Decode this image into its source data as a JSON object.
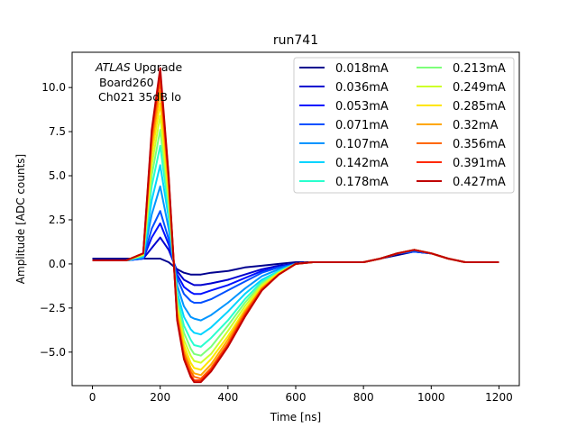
{
  "chart_data": {
    "type": "line",
    "title": "run741",
    "xlabel": "Time [ns]",
    "ylabel": "Amplitude [ADC counts]",
    "xlim": [
      -60,
      1260
    ],
    "ylim": [
      -6.9,
      12.0
    ],
    "x_ticks": [
      0,
      200,
      400,
      600,
      800,
      1000,
      1200
    ],
    "y_ticks": [
      -5.0,
      -2.5,
      0.0,
      2.5,
      5.0,
      7.5,
      10.0
    ],
    "x_tick_labels": [
      "0",
      "200",
      "400",
      "600",
      "800",
      "1000",
      "1200"
    ],
    "y_tick_labels": [
      "−5.0",
      "−2.5",
      "0.0",
      "2.5",
      "5.0",
      "7.5",
      "10.0"
    ],
    "grid": false,
    "legend_position": "top-right",
    "legend_columns": 2,
    "annotation": {
      "atlas": "ATLAS",
      "upgrade": " Upgrade",
      "line2": "Board260",
      "line3": "Ch021 35dB lo"
    },
    "x": [
      0,
      100,
      150,
      175,
      200,
      225,
      250,
      270,
      290,
      300,
      320,
      350,
      400,
      450,
      500,
      550,
      600,
      650,
      700,
      800,
      850,
      900,
      950,
      1000,
      1050,
      1100,
      1200
    ],
    "series": [
      {
        "name": "0.018mA",
        "color": "#00008f",
        "values": [
          0.3,
          0.3,
          0.3,
          0.3,
          0.3,
          0.1,
          -0.3,
          -0.5,
          -0.6,
          -0.6,
          -0.6,
          -0.5,
          -0.4,
          -0.2,
          -0.1,
          0.0,
          0.1,
          0.1,
          0.1,
          0.1,
          0.3,
          0.5,
          0.7,
          0.6,
          0.3,
          0.1,
          0.1
        ]
      },
      {
        "name": "0.036mA",
        "color": "#0000d0",
        "values": [
          0.2,
          0.2,
          0.3,
          0.9,
          1.5,
          0.8,
          -0.4,
          -0.9,
          -1.1,
          -1.2,
          -1.2,
          -1.1,
          -0.9,
          -0.6,
          -0.3,
          -0.1,
          0.0,
          0.1,
          0.1,
          0.1,
          0.3,
          0.6,
          0.7,
          0.6,
          0.3,
          0.1,
          0.1
        ]
      },
      {
        "name": "0.053mA",
        "color": "#0010ff",
        "values": [
          0.2,
          0.2,
          0.3,
          1.5,
          2.3,
          1.1,
          -0.6,
          -1.3,
          -1.6,
          -1.7,
          -1.7,
          -1.5,
          -1.2,
          -0.8,
          -0.4,
          -0.2,
          0.0,
          0.1,
          0.1,
          0.1,
          0.3,
          0.6,
          0.7,
          0.6,
          0.3,
          0.1,
          0.1
        ]
      },
      {
        "name": "0.071mA",
        "color": "#0050ff",
        "values": [
          0.2,
          0.2,
          0.3,
          2.0,
          3.0,
          1.4,
          -0.8,
          -1.7,
          -2.1,
          -2.2,
          -2.2,
          -2.0,
          -1.5,
          -1.0,
          -0.5,
          -0.2,
          0.0,
          0.1,
          0.1,
          0.1,
          0.3,
          0.6,
          0.7,
          0.6,
          0.3,
          0.1,
          0.1
        ]
      },
      {
        "name": "0.107mA",
        "color": "#0094ff",
        "values": [
          0.2,
          0.2,
          0.4,
          2.8,
          4.4,
          2.0,
          -1.2,
          -2.4,
          -3.0,
          -3.1,
          -3.2,
          -2.9,
          -2.2,
          -1.4,
          -0.7,
          -0.3,
          0.0,
          0.1,
          0.1,
          0.1,
          0.3,
          0.6,
          0.8,
          0.6,
          0.3,
          0.1,
          0.1
        ]
      },
      {
        "name": "0.142mA",
        "color": "#00d4ff",
        "values": [
          0.2,
          0.2,
          0.4,
          3.6,
          5.6,
          2.6,
          -1.6,
          -3.0,
          -3.7,
          -3.9,
          -4.0,
          -3.6,
          -2.7,
          -1.7,
          -0.9,
          -0.4,
          0.0,
          0.1,
          0.1,
          0.1,
          0.3,
          0.6,
          0.8,
          0.6,
          0.3,
          0.1,
          0.1
        ]
      },
      {
        "name": "0.178mA",
        "color": "#29ffce",
        "values": [
          0.2,
          0.2,
          0.5,
          4.4,
          6.7,
          3.0,
          -1.9,
          -3.5,
          -4.3,
          -4.6,
          -4.7,
          -4.2,
          -3.2,
          -2.0,
          -1.0,
          -0.4,
          0.0,
          0.1,
          0.1,
          0.1,
          0.3,
          0.6,
          0.8,
          0.6,
          0.3,
          0.1,
          0.1
        ]
      },
      {
        "name": "0.213mA",
        "color": "#7dff7a",
        "values": [
          0.2,
          0.2,
          0.5,
          5.0,
          7.6,
          3.4,
          -2.2,
          -3.9,
          -4.8,
          -5.1,
          -5.2,
          -4.7,
          -3.5,
          -2.2,
          -1.1,
          -0.5,
          0.0,
          0.1,
          0.1,
          0.1,
          0.3,
          0.6,
          0.8,
          0.6,
          0.3,
          0.1,
          0.1
        ]
      },
      {
        "name": "0.249mA",
        "color": "#ceff29",
        "values": [
          0.2,
          0.2,
          0.5,
          5.6,
          8.4,
          3.8,
          -2.4,
          -4.3,
          -5.2,
          -5.5,
          -5.6,
          -5.1,
          -3.8,
          -2.4,
          -1.2,
          -0.5,
          0.0,
          0.1,
          0.1,
          0.1,
          0.3,
          0.6,
          0.8,
          0.6,
          0.3,
          0.1,
          0.1
        ]
      },
      {
        "name": "0.285mA",
        "color": "#ffe600",
        "values": [
          0.2,
          0.2,
          0.6,
          6.2,
          9.1,
          4.1,
          -2.6,
          -4.6,
          -5.6,
          -5.9,
          -6.0,
          -5.4,
          -4.1,
          -2.6,
          -1.3,
          -0.5,
          0.0,
          0.1,
          0.1,
          0.1,
          0.3,
          0.6,
          0.8,
          0.6,
          0.3,
          0.1,
          0.1
        ]
      },
      {
        "name": "0.32mA",
        "color": "#ffa700",
        "values": [
          0.2,
          0.2,
          0.6,
          6.7,
          9.8,
          4.4,
          -2.8,
          -4.9,
          -5.9,
          -6.2,
          -6.3,
          -5.7,
          -4.3,
          -2.7,
          -1.4,
          -0.6,
          0.0,
          0.1,
          0.1,
          0.1,
          0.3,
          0.6,
          0.8,
          0.6,
          0.3,
          0.1,
          0.1
        ]
      },
      {
        "name": "0.356mA",
        "color": "#ff6800",
        "values": [
          0.2,
          0.2,
          0.6,
          7.1,
          10.4,
          4.7,
          -3.0,
          -5.1,
          -6.1,
          -6.4,
          -6.5,
          -5.9,
          -4.5,
          -2.8,
          -1.4,
          -0.6,
          0.0,
          0.1,
          0.1,
          0.1,
          0.3,
          0.6,
          0.8,
          0.6,
          0.3,
          0.1,
          0.1
        ]
      },
      {
        "name": "0.391mA",
        "color": "#ff2900",
        "values": [
          0.2,
          0.2,
          0.6,
          7.4,
          10.8,
          4.9,
          -3.1,
          -5.3,
          -6.3,
          -6.6,
          -6.6,
          -6.0,
          -4.6,
          -2.9,
          -1.5,
          -0.6,
          0.0,
          0.1,
          0.1,
          0.1,
          0.3,
          0.6,
          0.8,
          0.6,
          0.3,
          0.1,
          0.1
        ]
      },
      {
        "name": "0.427mA",
        "color": "#c00000",
        "values": [
          0.2,
          0.2,
          0.6,
          7.6,
          11.1,
          5.0,
          -3.2,
          -5.4,
          -6.4,
          -6.7,
          -6.7,
          -6.1,
          -4.7,
          -3.0,
          -1.5,
          -0.6,
          0.0,
          0.1,
          0.1,
          0.1,
          0.3,
          0.6,
          0.8,
          0.6,
          0.3,
          0.1,
          0.1
        ]
      }
    ]
  }
}
